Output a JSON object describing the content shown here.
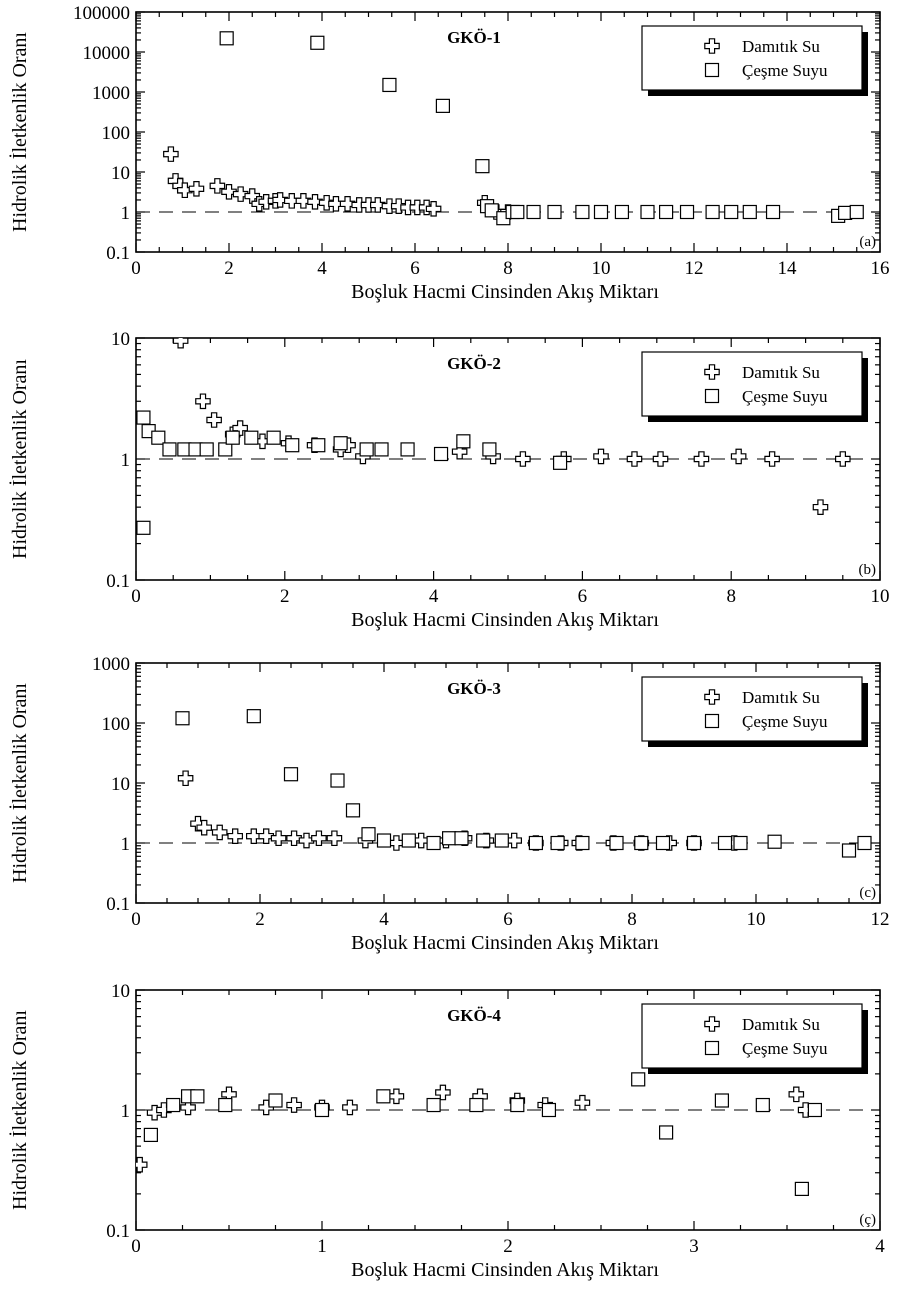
{
  "chart_data": [
    {
      "type": "scatter",
      "panel_label": "(a)",
      "annotation": "GKÖ-1",
      "xlabel": "Boşluk Hacmi Cinsinden Akış Miktarı",
      "ylabel": "Hidrolik İletkenlik Oranı",
      "xlim": [
        0,
        16
      ],
      "ylim": [
        0.1,
        100000
      ],
      "ylog": true,
      "x_ticks": [
        0,
        2,
        4,
        6,
        8,
        10,
        12,
        14,
        16
      ],
      "y_ticks": [
        0.1,
        1,
        10,
        100,
        1000,
        10000,
        100000
      ],
      "reference_line_y": 1,
      "legend": {
        "position": "top-right",
        "entries": [
          "Damıtık Su",
          "Çeşme Suyu"
        ]
      },
      "series": [
        {
          "name": "Damıtık Su",
          "marker": "cross",
          "x": [
            0.75,
            0.85,
            0.95,
            1.05,
            1.3,
            1.75,
            2.0,
            2.25,
            2.5,
            2.65,
            2.8,
            3.0,
            3.1,
            3.35,
            3.6,
            3.85,
            4.1,
            4.3,
            4.55,
            4.8,
            5.0,
            5.2,
            5.45,
            5.65,
            5.85,
            6.05,
            6.25,
            6.4,
            7.5,
            7.6,
            7.75,
            8.0
          ],
          "y": [
            28,
            6,
            4.5,
            3.5,
            3.8,
            4.5,
            3.2,
            2.8,
            2.5,
            1.6,
            1.8,
            1.9,
            2.0,
            1.9,
            1.9,
            1.8,
            1.7,
            1.6,
            1.6,
            1.5,
            1.5,
            1.5,
            1.4,
            1.4,
            1.3,
            1.3,
            1.3,
            1.2,
            1.7,
            1.2,
            1.0,
            1.0
          ]
        },
        {
          "name": "Çeşme Suyu",
          "marker": "square",
          "x": [
            1.95,
            3.9,
            5.45,
            6.6,
            7.45,
            7.55,
            7.65,
            7.9,
            8.1,
            8.2,
            8.55,
            9.0,
            9.6,
            10.0,
            10.45,
            11.0,
            11.4,
            11.85,
            12.4,
            12.8,
            13.2,
            13.7,
            15.1,
            15.25,
            15.5
          ],
          "y": [
            22000,
            17000,
            1500,
            450,
            14,
            1.4,
            1.1,
            0.7,
            1.0,
            1.0,
            1.0,
            1.0,
            1.0,
            1.0,
            1.0,
            1.0,
            1.0,
            1.0,
            1.0,
            1.0,
            1.0,
            1.0,
            0.8,
            0.95,
            1.0
          ]
        }
      ]
    },
    {
      "type": "scatter",
      "panel_label": "(b)",
      "annotation": "GKÖ-2",
      "xlabel": "Boşluk Hacmi Cinsinden Akış Miktarı",
      "ylabel": "Hidrolik İletkenlik Oranı",
      "xlim": [
        0,
        10
      ],
      "ylim": [
        0.1,
        10
      ],
      "ylog": true,
      "x_ticks": [
        0,
        2,
        4,
        6,
        8,
        10
      ],
      "y_ticks": [
        0.1,
        1,
        10
      ],
      "reference_line_y": 1,
      "legend": {
        "position": "top-right",
        "entries": [
          "Damıtık Su",
          "Çeşme Suyu"
        ]
      },
      "series": [
        {
          "name": "Damıtık Su",
          "marker": "cross",
          "x": [
            0.6,
            0.9,
            1.05,
            1.3,
            1.4,
            1.7,
            2.05,
            2.4,
            2.75,
            2.85,
            3.05,
            4.35,
            4.8,
            5.2,
            5.75,
            6.25,
            6.7,
            7.05,
            7.6,
            8.1,
            8.55,
            9.2,
            9.5
          ],
          "y": [
            9.5,
            3.0,
            2.1,
            1.6,
            1.8,
            1.4,
            1.35,
            1.3,
            1.2,
            1.3,
            1.05,
            1.15,
            1.05,
            1.0,
            1.0,
            1.05,
            1.0,
            1.0,
            1.0,
            1.05,
            1.0,
            0.4,
            1.0
          ]
        },
        {
          "name": "Çeşme Suyu",
          "marker": "square",
          "x": [
            0.1,
            0.1,
            0.17,
            0.3,
            0.45,
            0.65,
            0.8,
            0.95,
            1.2,
            1.3,
            1.55,
            1.85,
            2.1,
            2.45,
            2.75,
            3.1,
            3.3,
            3.65,
            4.1,
            4.4,
            4.75,
            5.7
          ],
          "y": [
            0.27,
            2.2,
            1.7,
            1.5,
            1.2,
            1.2,
            1.2,
            1.2,
            1.2,
            1.5,
            1.5,
            1.5,
            1.3,
            1.3,
            1.35,
            1.2,
            1.2,
            1.2,
            1.1,
            1.4,
            1.2,
            0.93
          ]
        }
      ]
    },
    {
      "type": "scatter",
      "panel_label": "(c)",
      "annotation": "GKÖ-3",
      "xlabel": "Boşluk Hacmi Cinsinden Akış Miktarı",
      "ylabel": "Hidrolik İletkenlik Oranı",
      "xlim": [
        0,
        12
      ],
      "ylim": [
        0.1,
        1000
      ],
      "ylog": true,
      "x_ticks": [
        0,
        2,
        4,
        6,
        8,
        10,
        12
      ],
      "y_ticks": [
        0.1,
        1,
        10,
        100,
        1000
      ],
      "reference_line_y": 1,
      "legend": {
        "position": "top-right",
        "entries": [
          "Damıtık Su",
          "Çeşme Suyu"
        ]
      },
      "series": [
        {
          "name": "Damıtık Su",
          "marker": "cross",
          "x": [
            0.8,
            1.0,
            1.1,
            1.35,
            1.6,
            1.9,
            2.1,
            2.3,
            2.55,
            2.75,
            2.95,
            3.2,
            3.7,
            4.2,
            4.6,
            5.0,
            5.3,
            5.65,
            6.1,
            6.45,
            6.85,
            7.15,
            7.7,
            8.15,
            8.6,
            9.0,
            9.65
          ],
          "y": [
            12,
            2.1,
            1.8,
            1.5,
            1.3,
            1.3,
            1.3,
            1.2,
            1.2,
            1.1,
            1.2,
            1.2,
            1.1,
            1.0,
            1.1,
            1.1,
            1.2,
            1.1,
            1.1,
            1.0,
            1.0,
            1.0,
            1.0,
            1.0,
            1.0,
            1.0,
            1.0
          ]
        },
        {
          "name": "Çeşme Suyu",
          "marker": "square",
          "x": [
            0.75,
            1.9,
            2.5,
            3.25,
            3.5,
            3.75,
            4.0,
            4.4,
            4.8,
            5.05,
            5.25,
            5.6,
            5.9,
            6.45,
            6.8,
            7.2,
            7.75,
            8.15,
            8.5,
            9.0,
            9.5,
            9.75,
            10.3,
            11.5,
            11.75
          ],
          "y": [
            120,
            130,
            14,
            11,
            3.5,
            1.4,
            1.1,
            1.1,
            1.0,
            1.2,
            1.2,
            1.1,
            1.1,
            1.0,
            1.0,
            1.0,
            1.0,
            1.0,
            1.0,
            1.0,
            1.0,
            1.0,
            1.05,
            0.75,
            1.0
          ]
        }
      ]
    },
    {
      "type": "scatter",
      "panel_label": "(ç)",
      "annotation": "GKÖ-4",
      "xlabel": "Boşluk Hacmi Cinsinden Akış Miktarı",
      "ylabel": "Hidrolik İletkenlik Oranı",
      "xlim": [
        0,
        4
      ],
      "ylim": [
        0.1,
        10
      ],
      "ylog": true,
      "x_ticks": [
        0,
        1,
        2,
        3,
        4
      ],
      "y_ticks": [
        0.1,
        1,
        10
      ],
      "reference_line_y": 1,
      "legend": {
        "position": "top-right",
        "entries": [
          "Damıtık Su",
          "Çeşme Suyu"
        ]
      },
      "series": [
        {
          "name": "Damıtık Su",
          "marker": "cross",
          "x": [
            0.02,
            0.1,
            0.15,
            0.28,
            0.5,
            0.7,
            0.85,
            1.0,
            1.15,
            1.4,
            1.65,
            1.85,
            2.05,
            2.2,
            2.4,
            3.55,
            3.6
          ],
          "y": [
            0.35,
            0.95,
            1.0,
            1.05,
            1.35,
            1.05,
            1.1,
            1.05,
            1.05,
            1.3,
            1.4,
            1.3,
            1.2,
            1.1,
            1.15,
            1.35,
            1.0
          ]
        },
        {
          "name": "Çeşme Suyu",
          "marker": "square",
          "x": [
            0.08,
            0.2,
            0.28,
            0.33,
            0.48,
            0.75,
            1.0,
            1.33,
            1.6,
            1.83,
            2.05,
            2.22,
            2.7,
            2.85,
            3.15,
            3.37,
            3.58,
            3.65
          ],
          "y": [
            0.62,
            1.1,
            1.3,
            1.3,
            1.1,
            1.2,
            1.0,
            1.3,
            1.1,
            1.1,
            1.1,
            1.0,
            1.8,
            0.65,
            1.2,
            1.1,
            0.22,
            1.0
          ]
        }
      ]
    }
  ]
}
